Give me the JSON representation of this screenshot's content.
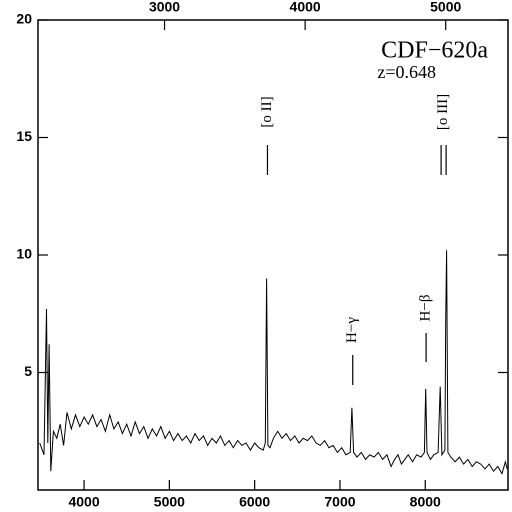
{
  "chart_data": {
    "type": "line",
    "annotations": [
      {
        "text": "CDF−620a"
      },
      {
        "text": "z=0.648"
      },
      {
        "text": "[o II]",
        "x": 6150
      },
      {
        "text": "H−γ",
        "x": 7150
      },
      {
        "text": "H−β",
        "x": 8010
      },
      {
        "text": "[o III]",
        "x": 8215
      }
    ],
    "x": [
      3480,
      3530,
      3560,
      3575,
      3590,
      3610,
      3640,
      3680,
      3720,
      3760,
      3800,
      3850,
      3900,
      3950,
      4000,
      4050,
      4100,
      4150,
      4200,
      4250,
      4300,
      4350,
      4400,
      4450,
      4500,
      4550,
      4600,
      4650,
      4700,
      4750,
      4800,
      4850,
      4900,
      4950,
      5000,
      5050,
      5100,
      5150,
      5200,
      5250,
      5300,
      5350,
      5400,
      5450,
      5500,
      5550,
      5600,
      5650,
      5700,
      5750,
      5800,
      5850,
      5900,
      5950,
      6000,
      6050,
      6100,
      6125,
      6140,
      6155,
      6180,
      6220,
      6270,
      6320,
      6370,
      6420,
      6470,
      6520,
      6570,
      6620,
      6670,
      6720,
      6770,
      6820,
      6870,
      6920,
      6970,
      7020,
      7070,
      7120,
      7140,
      7160,
      7200,
      7250,
      7300,
      7350,
      7400,
      7450,
      7500,
      7550,
      7600,
      7640,
      7680,
      7720,
      7760,
      7800,
      7850,
      7900,
      7950,
      7990,
      8005,
      8020,
      8060,
      8100,
      8150,
      8175,
      8195,
      8230,
      8240,
      8250,
      8265,
      8300,
      8350,
      8400,
      8450,
      8500,
      8550,
      8600,
      8650,
      8700,
      8750,
      8800,
      8850,
      8900,
      8940,
      8960
    ],
    "series": [
      {
        "color": "#000000",
        "values": [
          2.0,
          1.5,
          7.7,
          2.0,
          6.2,
          0.8,
          2.5,
          2.2,
          2.8,
          1.9,
          3.3,
          2.6,
          3.2,
          2.7,
          3.1,
          2.8,
          3.2,
          2.7,
          3.0,
          2.5,
          3.2,
          2.6,
          2.9,
          2.4,
          2.8,
          2.3,
          2.9,
          2.4,
          2.7,
          2.2,
          2.6,
          2.3,
          2.7,
          2.2,
          2.5,
          2.1,
          2.4,
          2.1,
          2.3,
          2.0,
          2.4,
          2.1,
          2.3,
          1.9,
          2.2,
          2.0,
          2.3,
          1.9,
          2.1,
          1.8,
          2.1,
          1.9,
          2.0,
          1.7,
          2.0,
          1.8,
          1.7,
          2.0,
          9.0,
          1.9,
          1.8,
          2.2,
          2.5,
          2.2,
          2.4,
          2.1,
          2.3,
          2.0,
          2.2,
          2.1,
          2.3,
          2.0,
          1.9,
          2.1,
          1.8,
          1.9,
          1.6,
          1.8,
          1.5,
          1.6,
          3.5,
          1.6,
          1.4,
          1.6,
          1.3,
          1.5,
          1.4,
          1.6,
          1.3,
          1.5,
          1.0,
          1.3,
          1.5,
          1.1,
          1.3,
          1.5,
          1.2,
          1.5,
          1.4,
          1.6,
          4.3,
          1.6,
          1.3,
          1.5,
          1.6,
          4.4,
          1.5,
          1.7,
          7.2,
          10.2,
          1.6,
          1.4,
          1.2,
          1.4,
          1.1,
          1.3,
          1.0,
          1.2,
          1.1,
          0.9,
          1.1,
          0.8,
          1.0,
          0.7,
          1.2,
          0.9
        ]
      }
    ],
    "xlim": [
      3460,
      8970
    ],
    "xticks": [
      4000,
      5000,
      6000,
      7000,
      8000
    ],
    "x2lim": [
      2100,
      5443
    ],
    "x2ticks": [
      3000,
      4000,
      5000
    ],
    "ylim": [
      0,
      20
    ],
    "yticks": [
      5,
      10,
      15,
      20
    ]
  }
}
